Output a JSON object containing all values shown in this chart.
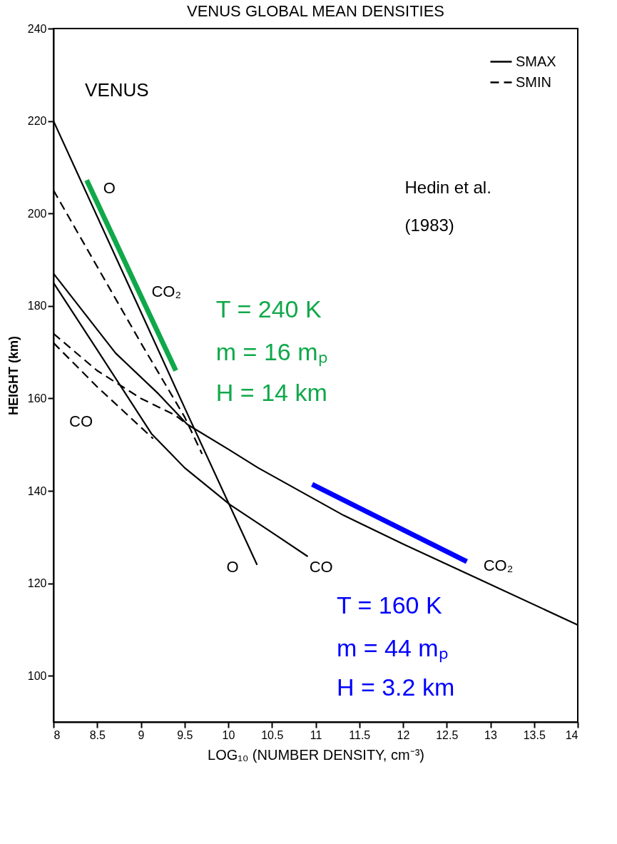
{
  "chart_data": {
    "type": "line",
    "title": "VENUS GLOBAL MEAN DENSITIES",
    "xlabel": "LOG₁₀ (NUMBER DENSITY, cm⁻³)",
    "ylabel": "HEIGHT (km)",
    "xlim": [
      8,
      14
    ],
    "xticks": [
      8,
      8.5,
      9,
      9.5,
      10,
      10.5,
      11,
      11.5,
      12,
      12.5,
      13,
      13.5,
      14
    ],
    "ylim": [
      90,
      240
    ],
    "yticks": [
      100,
      120,
      140,
      160,
      180,
      200,
      220,
      240
    ],
    "grid": false,
    "legend": "top right",
    "marker": "none",
    "series": [
      {
        "name": "SMAX",
        "color": "#000000",
        "line_style": "solid",
        "x": [
          8,
          9,
          9.5,
          10,
          10.33
        ],
        "values": [
          220,
          178.7,
          158,
          137.5,
          124
        ]
      },
      {
        "name": "SMIN",
        "color": "#000000",
        "line_style": "dashed",
        "x": [
          8,
          9,
          9.5,
          9.7
        ],
        "values": [
          205,
          172,
          156,
          148
        ]
      },
      {
        "color": "#000000",
        "line_style": "solid",
        "x": [
          8,
          8.71,
          9.2,
          9.53,
          10,
          10.34,
          11.32,
          12,
          12.79,
          14
        ],
        "values": [
          187,
          169.8,
          161,
          154.4,
          149,
          145,
          134.7,
          128.5,
          121.6,
          111
        ]
      },
      {
        "color": "#000000",
        "line_style": "dashed",
        "x": [
          8,
          8.5,
          9,
          9.39,
          9.53
        ],
        "values": [
          174,
          166,
          160,
          156.4,
          154.4
        ]
      },
      {
        "color": "#000000",
        "line_style": "solid",
        "x": [
          8,
          8.5,
          9.12,
          9.5,
          10.02,
          10.5,
          10.91
        ],
        "values": [
          185,
          170.5,
          152.4,
          145,
          137,
          131,
          125.8
        ]
      },
      {
        "color": "#000000",
        "line_style": "dashed",
        "x": [
          8,
          8.5,
          9.14
        ],
        "values": [
          172,
          162.5,
          151.3
        ]
      },
      {
        "color": "#10a84a",
        "line_style": "solid",
        "x": [
          8.38,
          9.4
        ],
        "values": [
          207.2,
          166
        ]
      },
      {
        "color": "#0000ff",
        "line_style": "solid",
        "x": [
          10.96,
          12.73
        ],
        "values": [
          141.4,
          124.7
        ]
      }
    ],
    "annotations": [
      "VENUS",
      "Hedin et al.",
      "(1983)",
      "O",
      "CO₂",
      "CO",
      "O",
      "CO",
      "CO₂",
      "T = 240 K",
      "m = 16 mₚ",
      "H = 14 km",
      "T = 160 K",
      "m = 44 mₚ",
      "H = 3.2 km"
    ]
  }
}
